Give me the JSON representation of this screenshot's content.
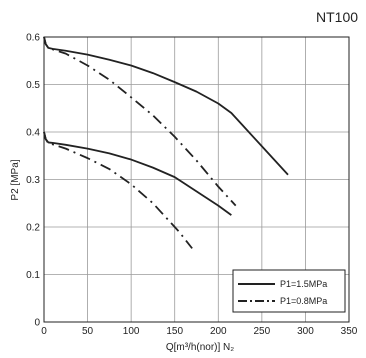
{
  "chart_data": {
    "type": "line",
    "title": "NT100",
    "xlabel": "Q[m³/h(nor)] N₂",
    "ylabel": "P2 [MPa]",
    "xlim": [
      0,
      350
    ],
    "ylim": [
      0,
      0.6
    ],
    "xticks": [
      0,
      50,
      100,
      150,
      200,
      250,
      300,
      350
    ],
    "yticks": [
      0,
      0.1,
      0.2,
      0.3,
      0.4,
      0.5,
      0.6
    ],
    "x_tick_labels": [
      "0",
      "50",
      "100",
      "150",
      "200",
      "250",
      "300",
      "350"
    ],
    "y_tick_labels": [
      "0",
      "0.1",
      "0.2",
      "0.3",
      "0.4",
      "0.5",
      "0.6"
    ],
    "grid": true,
    "legend_position": "bottom-right",
    "series": [
      {
        "name": "P1=1.5MPa",
        "style": "solid",
        "color": "#222222",
        "x": [
          0,
          2,
          5,
          10,
          25,
          50,
          75,
          100,
          125,
          150,
          175,
          200,
          215,
          230,
          250,
          265,
          280
        ],
        "y": [
          0.6,
          0.585,
          0.577,
          0.575,
          0.571,
          0.563,
          0.552,
          0.54,
          0.524,
          0.505,
          0.485,
          0.46,
          0.44,
          0.41,
          0.37,
          0.34,
          0.31
        ]
      },
      {
        "name": "P1=1.5MPa",
        "style": "solid",
        "color": "#222222",
        "x": [
          0,
          2,
          5,
          10,
          25,
          50,
          75,
          100,
          125,
          150,
          175,
          200,
          215
        ],
        "y": [
          0.4,
          0.385,
          0.378,
          0.377,
          0.373,
          0.365,
          0.355,
          0.342,
          0.325,
          0.305,
          0.275,
          0.245,
          0.225
        ]
      },
      {
        "name": "P1=0.8MPa",
        "style": "dash-dot",
        "color": "#222222",
        "x": [
          0,
          2,
          5,
          10,
          25,
          50,
          75,
          100,
          125,
          150,
          175,
          200,
          220
        ],
        "y": [
          0.6,
          0.585,
          0.577,
          0.574,
          0.565,
          0.54,
          0.51,
          0.473,
          0.435,
          0.39,
          0.34,
          0.285,
          0.245
        ]
      },
      {
        "name": "P1=0.8MPa",
        "style": "dash-dot",
        "color": "#222222",
        "x": [
          0,
          2,
          5,
          10,
          25,
          50,
          75,
          100,
          125,
          140,
          155,
          170
        ],
        "y": [
          0.4,
          0.385,
          0.376,
          0.374,
          0.365,
          0.345,
          0.322,
          0.29,
          0.25,
          0.22,
          0.19,
          0.155
        ]
      }
    ],
    "legend": [
      {
        "label": "P1=1.5MPa",
        "style": "solid"
      },
      {
        "label": "P1=0.8MPa",
        "style": "dash-dot"
      }
    ]
  }
}
